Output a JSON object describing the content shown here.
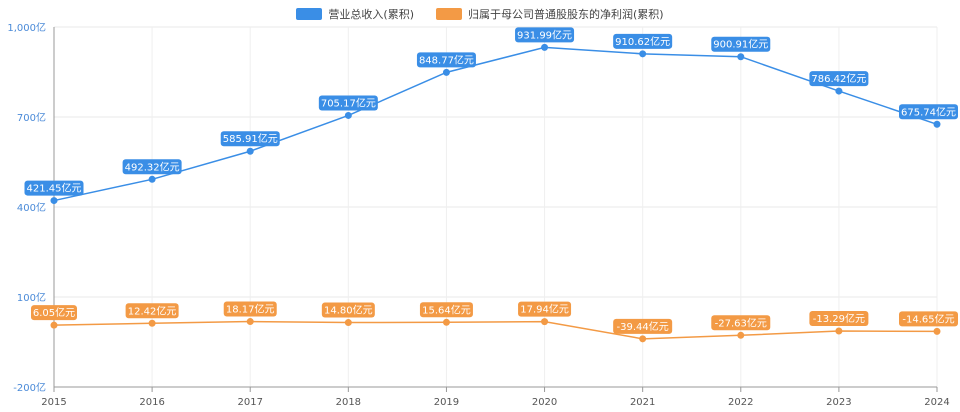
{
  "chart_data": {
    "type": "line",
    "x": [
      "2015",
      "2016",
      "2017",
      "2018",
      "2019",
      "2020",
      "2021",
      "2022",
      "2023",
      "2024"
    ],
    "series": [
      {
        "name": "营业总收入(累积)",
        "color": "#3a8ee6",
        "values": [
          421.45,
          492.32,
          585.91,
          705.17,
          848.77,
          931.99,
          910.62,
          900.91,
          786.42,
          675.74
        ],
        "labels": [
          "421.45亿元",
          "492.32亿元",
          "585.91亿元",
          "705.17亿元",
          "848.77亿元",
          "931.99亿元",
          "910.62亿元",
          "900.91亿元",
          "786.42亿元",
          "675.74亿元"
        ]
      },
      {
        "name": "归属于母公司普通股股东的净利润(累积)",
        "color": "#f39a45",
        "values": [
          6.05,
          12.42,
          18.17,
          14.8,
          15.64,
          17.94,
          -39.44,
          -27.63,
          -13.29,
          -14.65
        ],
        "labels": [
          "6.05亿元",
          "12.42亿元",
          "18.17亿元",
          "14.80亿元",
          "15.64亿元",
          "17.94亿元",
          "-39.44亿元",
          "-27.63亿元",
          "-13.29亿元",
          "-14.65亿元"
        ]
      }
    ],
    "y_ticks": [
      -200,
      100,
      400,
      700,
      1000
    ],
    "y_tick_labels": [
      "-200亿",
      "100亿",
      "400亿",
      "700亿",
      "1,000亿"
    ],
    "ylim": [
      -200,
      1000
    ],
    "grid": true,
    "legend_position": "top-center"
  }
}
